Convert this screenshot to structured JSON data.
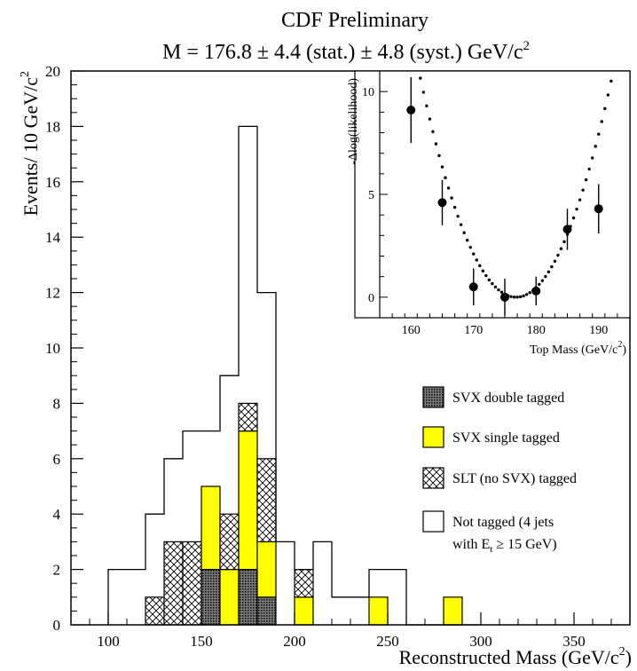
{
  "chart_data": {
    "type": "bar",
    "title": "CDF Preliminary",
    "subtitle": "M = 176.8 ± 4.4 (stat.) ± 4.8 (syst.) GeV/c",
    "subtitle_sup": "2",
    "xlabel": "Reconstructed Mass (GeV/c",
    "xlabel_sup": "2",
    "xlabel_close": ")",
    "ylabel": "Events/ 10 GeV/c",
    "ylabel_sup": "2",
    "xlim": [
      80,
      380
    ],
    "ylim": [
      0,
      20
    ],
    "xticks": [
      "100",
      "150",
      "200",
      "250",
      "300",
      "350"
    ],
    "yticks": [
      "0",
      "2",
      "4",
      "6",
      "8",
      "10",
      "12",
      "14",
      "16",
      "18",
      "20"
    ],
    "bin_width": 10,
    "bins": [
      100,
      110,
      120,
      130,
      140,
      150,
      160,
      170,
      180,
      190,
      200,
      210,
      220,
      230,
      240,
      250,
      260,
      270,
      280,
      290
    ],
    "series": [
      {
        "name": "SVX double tagged",
        "color": "#333333",
        "pattern": "dots",
        "values": [
          0,
          0,
          0,
          0,
          0,
          2,
          0,
          2,
          1,
          0,
          0,
          0,
          0,
          0,
          0,
          0,
          0,
          0,
          0,
          0
        ]
      },
      {
        "name": "SVX single tagged",
        "color": "#ffff00",
        "pattern": "solid",
        "values": [
          0,
          0,
          0,
          0,
          0,
          3,
          2,
          5,
          2,
          0,
          1,
          0,
          0,
          0,
          1,
          0,
          0,
          0,
          1,
          0
        ]
      },
      {
        "name": "SLT (no SVX) tagged",
        "color": "#ffffff",
        "pattern": "crosshatch",
        "values": [
          0,
          0,
          1,
          3,
          3,
          0,
          2,
          1,
          3,
          0,
          1,
          0,
          0,
          0,
          0,
          0,
          0,
          0,
          0,
          0
        ]
      },
      {
        "name": "Not tagged (4 jets",
        "name_line2": "with E",
        "name_line2_sub": "t",
        "name_line2_rest": " ≥ 15 GeV)",
        "color": "#ffffff",
        "pattern": "none",
        "values": [
          2,
          2,
          4,
          6,
          7,
          7,
          9,
          18,
          12,
          3,
          2,
          3,
          1,
          1,
          2,
          2,
          0,
          0,
          0,
          0
        ]
      }
    ],
    "legend_position": "lower-right",
    "inset": {
      "type": "scatter",
      "xlabel": "Top Mass (GeV/c",
      "xlabel_sup": "2",
      "xlabel_close": ")",
      "ylabel": "-Δlog(likelihood)",
      "xlim": [
        155,
        195
      ],
      "ylim": [
        -1,
        11
      ],
      "xticks": [
        "160",
        "170",
        "180",
        "190"
      ],
      "yticks": [
        "0",
        "5",
        "10"
      ],
      "points": [
        {
          "x": 160,
          "y": 9.1,
          "err": 1.6
        },
        {
          "x": 165,
          "y": 4.6,
          "err": 1.1
        },
        {
          "x": 170,
          "y": 0.5,
          "err": 0.9
        },
        {
          "x": 175,
          "y": 0.0,
          "err": 0.9
        },
        {
          "x": 180,
          "y": 0.3,
          "err": 0.7
        },
        {
          "x": 185,
          "y": 3.3,
          "err": 1.0
        },
        {
          "x": 190,
          "y": 4.3,
          "err": 1.2
        }
      ],
      "fit": {
        "style": "dotted",
        "min_x": 176.8,
        "coef": 0.0455
      }
    }
  }
}
